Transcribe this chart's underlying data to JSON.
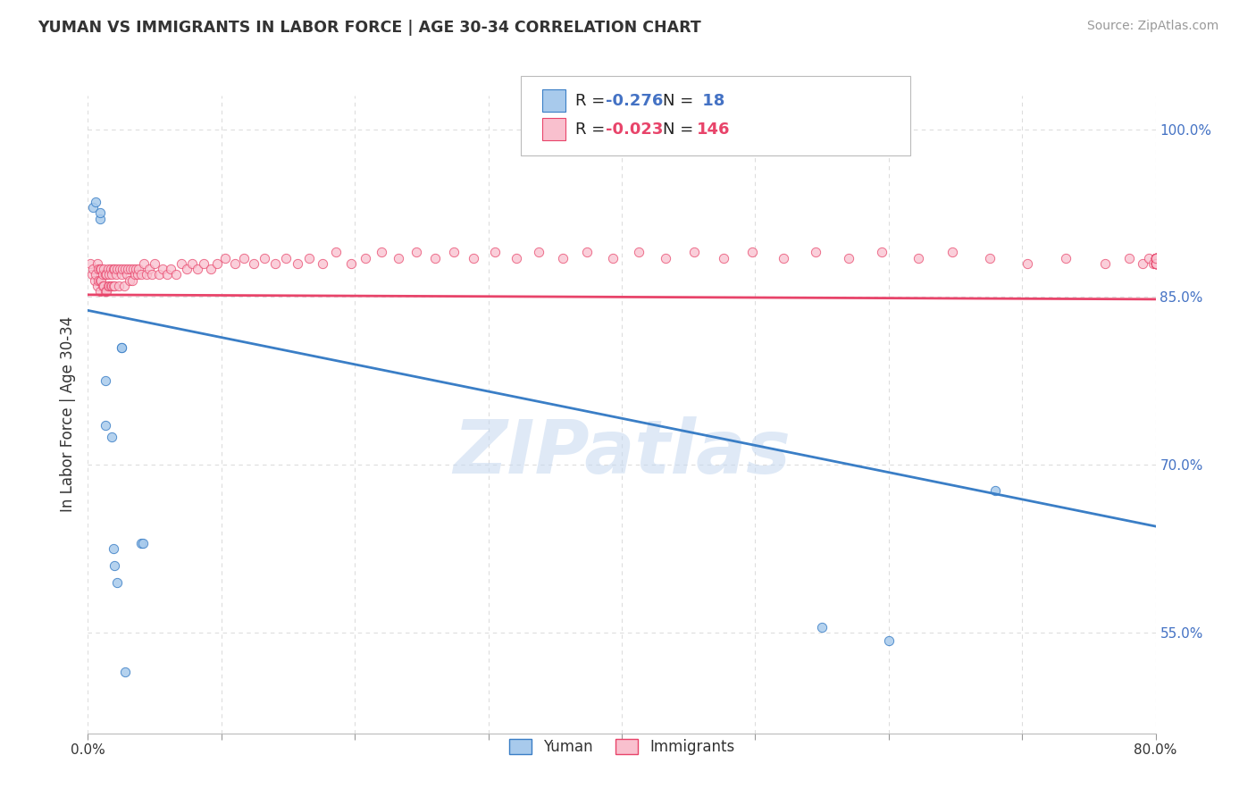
{
  "title": "YUMAN VS IMMIGRANTS IN LABOR FORCE | AGE 30-34 CORRELATION CHART",
  "source_text": "Source: ZipAtlas.com",
  "ylabel": "In Labor Force | Age 30-34",
  "xlim": [
    0.0,
    0.8
  ],
  "ylim": [
    0.46,
    1.03
  ],
  "ytick_right_vals": [
    0.55,
    0.7,
    0.85,
    1.0
  ],
  "ytick_right_labels": [
    "55.0%",
    "70.0%",
    "85.0%",
    "100.0%"
  ],
  "legend_label_blue": "Yuman",
  "legend_label_pink": "Immigrants",
  "blue_R": "-0.276",
  "blue_N": "18",
  "pink_R": "-0.023",
  "pink_N": "146",
  "blue_scatter_x": [
    0.004,
    0.006,
    0.009,
    0.009,
    0.013,
    0.013,
    0.018,
    0.019,
    0.02,
    0.022,
    0.025,
    0.025,
    0.028,
    0.04,
    0.041,
    0.55,
    0.6,
    0.68
  ],
  "blue_scatter_y": [
    0.93,
    0.935,
    0.92,
    0.925,
    0.775,
    0.735,
    0.725,
    0.625,
    0.61,
    0.595,
    0.805,
    0.805,
    0.515,
    0.63,
    0.63,
    0.555,
    0.543,
    0.677
  ],
  "pink_scatter_x": [
    0.002,
    0.003,
    0.004,
    0.005,
    0.006,
    0.007,
    0.007,
    0.008,
    0.008,
    0.009,
    0.009,
    0.009,
    0.01,
    0.01,
    0.011,
    0.011,
    0.012,
    0.012,
    0.013,
    0.013,
    0.014,
    0.014,
    0.015,
    0.015,
    0.016,
    0.016,
    0.017,
    0.017,
    0.018,
    0.018,
    0.019,
    0.019,
    0.02,
    0.02,
    0.021,
    0.022,
    0.023,
    0.024,
    0.025,
    0.026,
    0.027,
    0.028,
    0.029,
    0.03,
    0.031,
    0.032,
    0.033,
    0.034,
    0.035,
    0.036,
    0.037,
    0.038,
    0.04,
    0.042,
    0.044,
    0.046,
    0.048,
    0.05,
    0.053,
    0.056,
    0.059,
    0.062,
    0.066,
    0.07,
    0.074,
    0.078,
    0.082,
    0.087,
    0.092,
    0.097,
    0.103,
    0.11,
    0.117,
    0.124,
    0.132,
    0.14,
    0.148,
    0.157,
    0.166,
    0.176,
    0.186,
    0.197,
    0.208,
    0.22,
    0.233,
    0.246,
    0.26,
    0.274,
    0.289,
    0.305,
    0.321,
    0.338,
    0.356,
    0.374,
    0.393,
    0.413,
    0.433,
    0.454,
    0.476,
    0.498,
    0.521,
    0.545,
    0.57,
    0.595,
    0.622,
    0.648,
    0.676,
    0.704,
    0.733,
    0.762,
    0.78,
    0.79,
    0.795,
    0.798,
    0.8,
    0.8,
    0.8,
    0.8,
    0.8,
    0.8,
    0.8,
    0.8,
    0.8,
    0.8,
    0.8,
    0.8,
    0.8,
    0.8,
    0.8,
    0.8,
    0.8,
    0.8,
    0.8,
    0.8,
    0.8,
    0.8,
    0.8,
    0.8,
    0.8,
    0.8,
    0.8,
    0.8,
    0.8
  ],
  "pink_scatter_y": [
    0.88,
    0.87,
    0.875,
    0.865,
    0.87,
    0.88,
    0.86,
    0.875,
    0.865,
    0.875,
    0.865,
    0.855,
    0.875,
    0.865,
    0.87,
    0.86,
    0.875,
    0.86,
    0.87,
    0.855,
    0.87,
    0.855,
    0.875,
    0.86,
    0.87,
    0.86,
    0.875,
    0.86,
    0.87,
    0.86,
    0.875,
    0.86,
    0.875,
    0.86,
    0.87,
    0.875,
    0.86,
    0.875,
    0.87,
    0.875,
    0.86,
    0.875,
    0.87,
    0.875,
    0.865,
    0.875,
    0.865,
    0.875,
    0.87,
    0.875,
    0.87,
    0.875,
    0.87,
    0.88,
    0.87,
    0.875,
    0.87,
    0.88,
    0.87,
    0.875,
    0.87,
    0.875,
    0.87,
    0.88,
    0.875,
    0.88,
    0.875,
    0.88,
    0.875,
    0.88,
    0.885,
    0.88,
    0.885,
    0.88,
    0.885,
    0.88,
    0.885,
    0.88,
    0.885,
    0.88,
    0.89,
    0.88,
    0.885,
    0.89,
    0.885,
    0.89,
    0.885,
    0.89,
    0.885,
    0.89,
    0.885,
    0.89,
    0.885,
    0.89,
    0.885,
    0.89,
    0.885,
    0.89,
    0.885,
    0.89,
    0.885,
    0.89,
    0.885,
    0.89,
    0.885,
    0.89,
    0.885,
    0.88,
    0.885,
    0.88,
    0.885,
    0.88,
    0.885,
    0.88,
    0.885,
    0.88,
    0.885,
    0.88,
    0.885,
    0.88,
    0.885,
    0.88,
    0.885,
    0.88,
    0.885,
    0.88,
    0.885,
    0.88,
    0.885,
    0.88,
    0.885,
    0.88,
    0.885,
    0.88,
    0.885,
    0.88,
    0.885,
    0.88,
    0.885,
    0.88,
    0.885,
    0.88,
    0.885
  ],
  "blue_line_x": [
    0.0,
    0.8
  ],
  "blue_line_y": [
    0.838,
    0.645
  ],
  "pink_line_x": [
    0.0,
    0.8
  ],
  "pink_line_y": [
    0.852,
    0.848
  ],
  "blue_color": "#A8CAEC",
  "pink_color": "#F9C0CE",
  "blue_line_color": "#3A7EC6",
  "pink_line_color": "#E8446A",
  "grid_color": "#DDDDDD",
  "watermark_color": "#C5D8F0",
  "watermark_text": "ZIPatlas",
  "background_color": "#FFFFFF",
  "title_color": "#333333",
  "axis_label_color": "#333333",
  "right_tick_color": "#4472C4",
  "legend_value_color": "#4472C4"
}
